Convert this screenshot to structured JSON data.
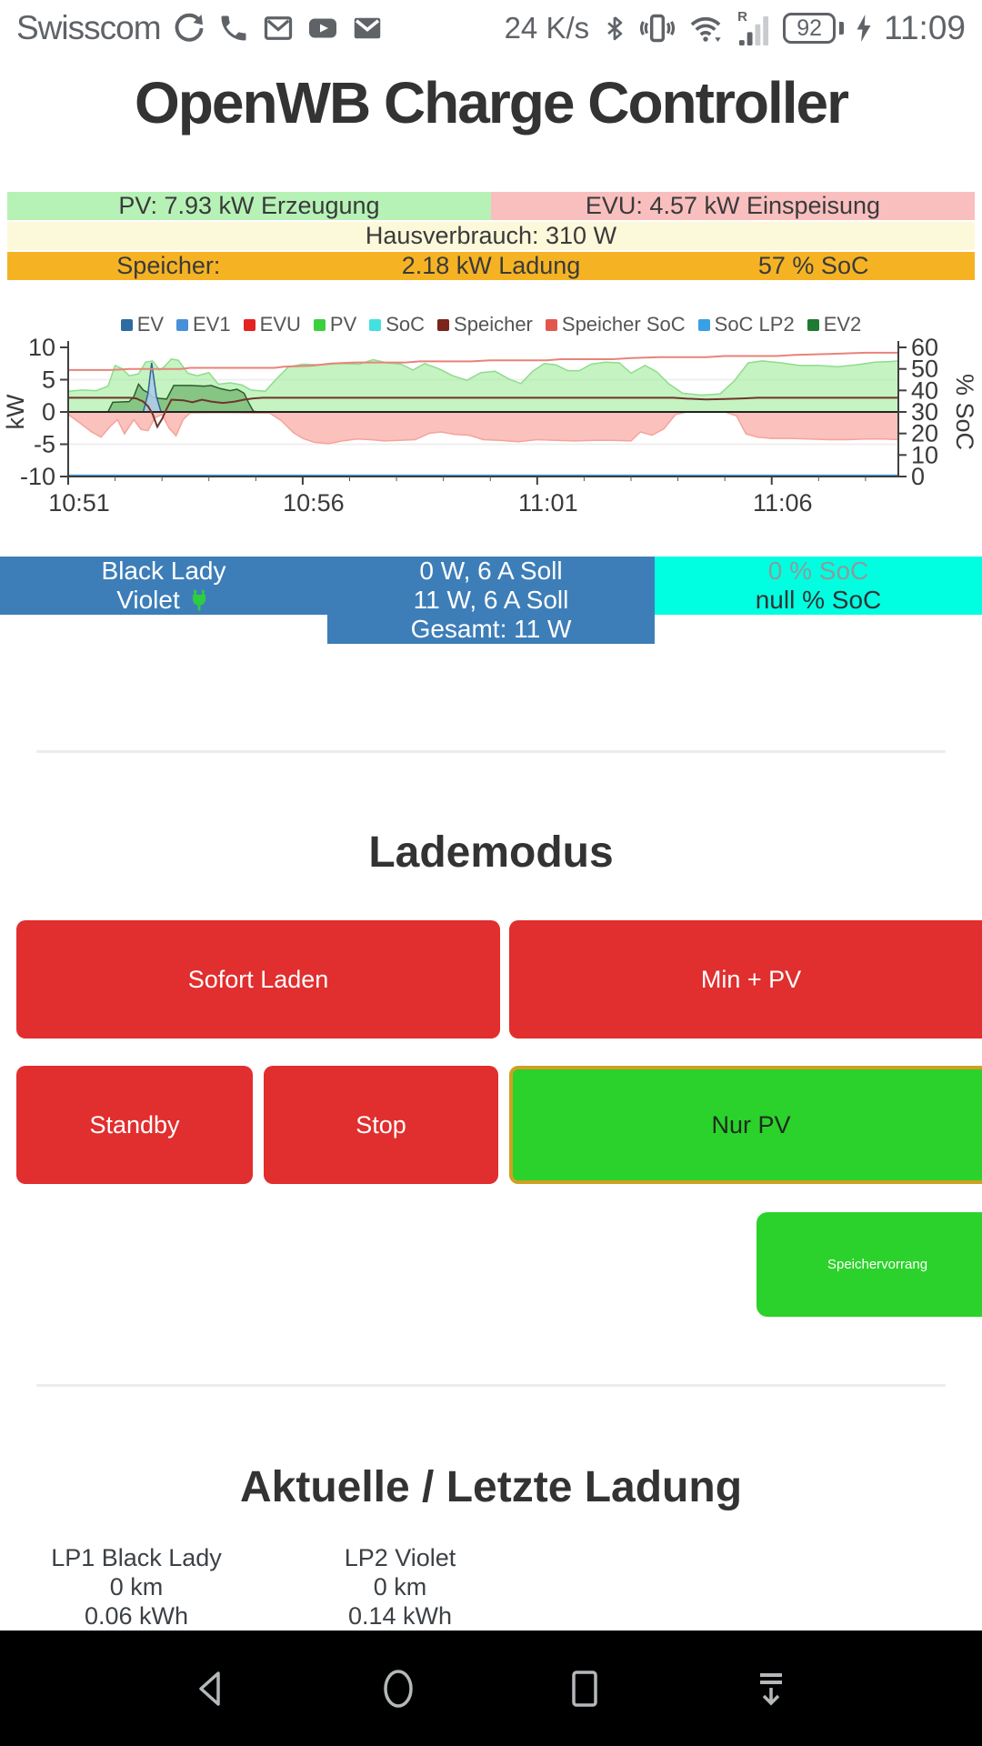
{
  "status_bar": {
    "carrier": "Swisscom",
    "left_icons": [
      "sync-icon",
      "phone-icon",
      "gmail-icon",
      "youtube-icon",
      "mail-icon"
    ],
    "net_speed": "24 K/s",
    "right_icons": [
      "bluetooth-icon",
      "vibrate-icon",
      "wifi-icon",
      "signal-icon",
      "battery-icon",
      "charging-bolt-icon"
    ],
    "signal_roaming": "R",
    "battery_percent": "92",
    "time": "11:09"
  },
  "header": {
    "title": "OpenWB Charge Controller"
  },
  "status_rows": {
    "pv_label": "PV: 7.93 kW Erzeugung",
    "evu_label": "EVU: 4.57 kW Einspeisung",
    "haus_label": "Hausverbrauch: 310 W",
    "speicher_label": "Speicher:",
    "speicher_ladung": "2.18 kW Ladung",
    "speicher_soc": "57 % SoC",
    "colors": {
      "pv_bg": "#b6f2b6",
      "evu_bg": "#f9bfbf",
      "haus_bg": "#fcf8da",
      "speicher_bg": "#f5b324"
    }
  },
  "chart_data": {
    "type": "area",
    "title": "",
    "ylabel_left": "kW",
    "ylabel_right": "% SoC",
    "ylim_left": [
      -10,
      10
    ],
    "ylim_right": [
      0,
      60
    ],
    "yticks_left": [
      10,
      5,
      0,
      -5,
      -10
    ],
    "yticks_right": [
      0,
      10,
      20,
      30,
      40,
      50,
      60
    ],
    "grid_left": [
      5,
      -5
    ],
    "x_range_minutes": [
      0,
      17.7
    ],
    "xtick_minutes": [
      0,
      5,
      10,
      15
    ],
    "xtick_labels": [
      "10:51",
      "10:56",
      "11:01",
      "11:06"
    ],
    "minor_tick_every": 1,
    "legend": [
      {
        "name": "EV",
        "color": "#2d6ca2"
      },
      {
        "name": "EV1",
        "color": "#4a90d9"
      },
      {
        "name": "EVU",
        "color": "#e32222"
      },
      {
        "name": "PV",
        "color": "#3ecf3e"
      },
      {
        "name": "SoC",
        "color": "#45e0e0"
      },
      {
        "name": "Speicher",
        "color": "#7a241c"
      },
      {
        "name": "Speicher SoC",
        "color": "#e2574d"
      },
      {
        "name": "SoC LP2",
        "color": "#38a1e6"
      },
      {
        "name": "EV2",
        "color": "#1f7a33"
      }
    ],
    "series": [
      {
        "name": "PV",
        "type": "area",
        "axis": "left",
        "fill": "rgba(158,235,152,0.6)",
        "stroke": "#8fdc8f",
        "points": [
          [
            0,
            3.2
          ],
          [
            0.3,
            3.4
          ],
          [
            0.6,
            3.3
          ],
          [
            0.85,
            4.0
          ],
          [
            1.0,
            7.2
          ],
          [
            1.15,
            6.7
          ],
          [
            1.3,
            5.6
          ],
          [
            1.5,
            5.9
          ],
          [
            1.65,
            7.7
          ],
          [
            1.8,
            7.9
          ],
          [
            1.95,
            6.5
          ],
          [
            2.05,
            7.0
          ],
          [
            2.2,
            8.2
          ],
          [
            2.35,
            8.0
          ],
          [
            2.55,
            6.0
          ],
          [
            2.75,
            5.6
          ],
          [
            3.0,
            6.1
          ],
          [
            3.2,
            4.3
          ],
          [
            3.45,
            4.5
          ],
          [
            3.7,
            4.2
          ],
          [
            3.9,
            3.4
          ],
          [
            4.2,
            3.2
          ],
          [
            4.45,
            5.2
          ],
          [
            4.7,
            7.0
          ],
          [
            5.0,
            7.4
          ],
          [
            5.4,
            7.3
          ],
          [
            5.8,
            7.5
          ],
          [
            6.2,
            7.4
          ],
          [
            6.5,
            8.1
          ],
          [
            6.8,
            7.6
          ],
          [
            7.1,
            7.4
          ],
          [
            7.35,
            6.5
          ],
          [
            7.6,
            7.5
          ],
          [
            7.9,
            6.7
          ],
          [
            8.2,
            5.6
          ],
          [
            8.5,
            4.9
          ],
          [
            8.8,
            6.1
          ],
          [
            9.1,
            6.3
          ],
          [
            9.4,
            5.1
          ],
          [
            9.65,
            4.4
          ],
          [
            9.9,
            6.3
          ],
          [
            10.15,
            7.5
          ],
          [
            10.4,
            7.3
          ],
          [
            10.65,
            6.4
          ],
          [
            10.9,
            6.4
          ],
          [
            11.15,
            7.4
          ],
          [
            11.45,
            7.7
          ],
          [
            11.75,
            7.6
          ],
          [
            12.0,
            6.0
          ],
          [
            12.3,
            7.2
          ],
          [
            12.55,
            6.2
          ],
          [
            12.8,
            4.4
          ],
          [
            13.1,
            2.9
          ],
          [
            13.5,
            2.6
          ],
          [
            13.9,
            2.8
          ],
          [
            14.2,
            4.8
          ],
          [
            14.5,
            7.6
          ],
          [
            14.8,
            7.9
          ],
          [
            15.2,
            7.6
          ],
          [
            15.6,
            7.2
          ],
          [
            16.0,
            7.2
          ],
          [
            16.4,
            7.0
          ],
          [
            16.8,
            7.3
          ],
          [
            17.2,
            7.7
          ],
          [
            17.5,
            7.8
          ],
          [
            17.7,
            7.9
          ]
        ]
      },
      {
        "name": "EVU",
        "type": "area",
        "axis": "left",
        "fill": "rgba(249,166,160,0.7)",
        "stroke": "#f5a39d",
        "points": [
          [
            0,
            -0.4
          ],
          [
            0.25,
            -1.7
          ],
          [
            0.5,
            -3.1
          ],
          [
            0.7,
            -3.9
          ],
          [
            0.9,
            -2.2
          ],
          [
            1.05,
            -1.2
          ],
          [
            1.2,
            -3.4
          ],
          [
            1.4,
            -1.2
          ],
          [
            1.55,
            -2.7
          ],
          [
            1.7,
            -2.9
          ],
          [
            1.85,
            -0.9
          ],
          [
            2.0,
            -0.4
          ],
          [
            2.15,
            -2.5
          ],
          [
            2.3,
            -3.7
          ],
          [
            2.45,
            -1.2
          ],
          [
            2.6,
            -0.15
          ],
          [
            3.2,
            -0.1
          ],
          [
            3.8,
            -0.15
          ],
          [
            4.3,
            -0.2
          ],
          [
            4.55,
            -1.4
          ],
          [
            4.8,
            -3.2
          ],
          [
            5.0,
            -4.1
          ],
          [
            5.25,
            -4.7
          ],
          [
            5.55,
            -4.9
          ],
          [
            5.85,
            -4.5
          ],
          [
            6.15,
            -4.2
          ],
          [
            6.45,
            -4.3
          ],
          [
            6.75,
            -4.5
          ],
          [
            7.05,
            -4.4
          ],
          [
            7.4,
            -4.3
          ],
          [
            7.7,
            -3.3
          ],
          [
            7.95,
            -3.1
          ],
          [
            8.25,
            -3.5
          ],
          [
            8.55,
            -3.6
          ],
          [
            8.85,
            -4.3
          ],
          [
            9.2,
            -4.4
          ],
          [
            9.6,
            -4.6
          ],
          [
            10.0,
            -4.3
          ],
          [
            10.4,
            -4.4
          ],
          [
            10.8,
            -4.5
          ],
          [
            11.2,
            -4.4
          ],
          [
            11.6,
            -4.4
          ],
          [
            12.0,
            -4.5
          ],
          [
            12.2,
            -3.1
          ],
          [
            12.45,
            -3.6
          ],
          [
            12.7,
            -2.6
          ],
          [
            12.95,
            -0.4
          ],
          [
            13.2,
            0
          ],
          [
            14.0,
            0
          ],
          [
            14.25,
            -0.6
          ],
          [
            14.45,
            -3.4
          ],
          [
            14.7,
            -3.9
          ],
          [
            15.0,
            -4.1
          ],
          [
            15.4,
            -4.1
          ],
          [
            15.8,
            -4.2
          ],
          [
            16.2,
            -4.3
          ],
          [
            16.6,
            -4.3
          ],
          [
            17.0,
            -4.2
          ],
          [
            17.4,
            -4.2
          ],
          [
            17.7,
            -4.3
          ]
        ]
      },
      {
        "name": "EV",
        "type": "area",
        "axis": "left",
        "fill": "rgba(84,158,84,0.55)",
        "stroke": "#2e5b2e",
        "points": [
          [
            0,
            0
          ],
          [
            0.85,
            0
          ],
          [
            0.95,
            1.5
          ],
          [
            1.3,
            1.6
          ],
          [
            1.4,
            2.4
          ],
          [
            1.5,
            4.3
          ],
          [
            1.6,
            3.4
          ],
          [
            1.7,
            3.0
          ],
          [
            1.8,
            2.3
          ],
          [
            1.95,
            2.1
          ],
          [
            2.1,
            2.0
          ],
          [
            2.25,
            4.1
          ],
          [
            2.6,
            4.1
          ],
          [
            2.9,
            4.0
          ],
          [
            3.05,
            4.1
          ],
          [
            3.25,
            3.6
          ],
          [
            3.45,
            3.3
          ],
          [
            3.6,
            3.5
          ],
          [
            3.75,
            2.9
          ],
          [
            3.85,
            1.4
          ],
          [
            3.95,
            0.1
          ],
          [
            4.05,
            0
          ],
          [
            17.7,
            0
          ]
        ]
      },
      {
        "name": "EV1",
        "type": "area",
        "axis": "left",
        "fill": "rgba(176,204,231,0.9)",
        "stroke": "#2f6496",
        "points": [
          [
            0,
            0
          ],
          [
            1.6,
            0
          ],
          [
            1.7,
            2.8
          ],
          [
            1.78,
            7.6
          ],
          [
            1.88,
            2.4
          ],
          [
            1.98,
            0
          ],
          [
            17.7,
            0
          ]
        ]
      },
      {
        "name": "Speicher",
        "type": "line",
        "axis": "left",
        "stroke": "#6e352a",
        "points": [
          [
            0,
            2.2
          ],
          [
            1.3,
            2.2
          ],
          [
            1.45,
            2.1
          ],
          [
            1.6,
            1.6
          ],
          [
            1.7,
            0.9
          ],
          [
            1.8,
            -0.3
          ],
          [
            1.9,
            -2.3
          ],
          [
            2.0,
            -1.1
          ],
          [
            2.1,
            0.5
          ],
          [
            2.2,
            1.9
          ],
          [
            2.45,
            1.8
          ],
          [
            2.65,
            1.5
          ],
          [
            2.85,
            1.9
          ],
          [
            3.05,
            1.6
          ],
          [
            3.3,
            1.4
          ],
          [
            3.55,
            1.6
          ],
          [
            3.75,
            1.9
          ],
          [
            3.95,
            2.1
          ],
          [
            4.15,
            2.2
          ],
          [
            12.9,
            2.2
          ],
          [
            13.2,
            2.05
          ],
          [
            13.6,
            1.95
          ],
          [
            14.0,
            2.0
          ],
          [
            14.4,
            2.1
          ],
          [
            14.7,
            2.2
          ],
          [
            17.7,
            2.2
          ]
        ]
      },
      {
        "name": "Speicher SoC",
        "type": "line",
        "axis": "right",
        "stroke": "#e8837a",
        "points": [
          [
            0,
            49.5
          ],
          [
            0.9,
            49.5
          ],
          [
            1.3,
            50
          ],
          [
            2.4,
            50
          ],
          [
            2.6,
            50.5
          ],
          [
            4.4,
            50.5
          ],
          [
            4.6,
            51
          ],
          [
            5.2,
            51.5
          ],
          [
            5.6,
            52.5
          ],
          [
            6.1,
            53
          ],
          [
            7.2,
            53
          ],
          [
            7.5,
            53.5
          ],
          [
            8.6,
            53.5
          ],
          [
            9.0,
            54
          ],
          [
            10.2,
            54
          ],
          [
            10.5,
            54.5
          ],
          [
            11.6,
            54.5
          ],
          [
            12.0,
            55
          ],
          [
            12.6,
            55.5
          ],
          [
            13.6,
            55.5
          ],
          [
            14.0,
            56
          ],
          [
            15.1,
            56
          ],
          [
            15.5,
            56.5
          ],
          [
            16.3,
            57
          ],
          [
            17.0,
            57.5
          ],
          [
            17.7,
            57.5
          ]
        ]
      },
      {
        "name": "SoC",
        "type": "line",
        "axis": "right",
        "stroke": "#3fdede",
        "points": [
          [
            0,
            0
          ],
          [
            17.7,
            0
          ]
        ]
      },
      {
        "name": "SoC LP2",
        "type": "line",
        "axis": "right",
        "stroke": "#4aa7e0",
        "points": [
          [
            0,
            0.5
          ],
          [
            17.7,
            0.5
          ]
        ]
      }
    ]
  },
  "charge_points": {
    "names": [
      "Black Lady",
      "Violet"
    ],
    "power_rows": [
      "0 W, 6 A Soll",
      "11 W, 6 A Soll"
    ],
    "total": "Gesamt: 11 W",
    "soc_rows": [
      "0 % SoC",
      "null % SoC"
    ]
  },
  "lademodus": {
    "title": "Lademodus",
    "buttons": [
      {
        "label": "Sofort Laden"
      },
      {
        "label": "Min + PV"
      },
      {
        "label": "Standby"
      },
      {
        "label": "Stop"
      },
      {
        "label": "Nur PV"
      }
    ],
    "speichervorrang_label": "Speichervorrang"
  },
  "ladung": {
    "title": "Aktuelle / Letzte Ladung",
    "entries": [
      {
        "name": "LP1 Black Lady",
        "distance": "0 km",
        "energy": "0.06 kWh"
      },
      {
        "name": "LP2 Violet",
        "distance": "0 km",
        "energy": "0.14 kWh"
      }
    ]
  },
  "nav_bar": {
    "icons": [
      "back-icon",
      "home-icon",
      "recents-icon",
      "hide-navigation-icon"
    ]
  }
}
